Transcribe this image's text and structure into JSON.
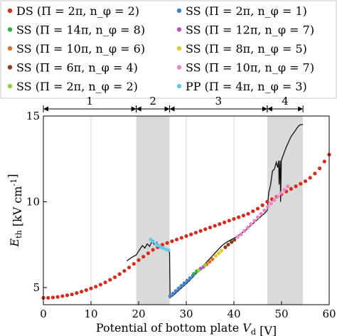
{
  "chart_data": {
    "type": "scatter",
    "xlabel": "Potential of bottom plate V_d [V]",
    "ylabel": "E_th [kV cm^-1]",
    "xlim": [
      0,
      60
    ],
    "ylim": [
      4,
      15
    ],
    "x_ticks": [
      0,
      10,
      20,
      30,
      40,
      50,
      60
    ],
    "y_ticks": [
      5,
      10,
      15
    ],
    "grid": "vertical",
    "legend_position": "top",
    "regions": [
      {
        "label": "1",
        "x": [
          0,
          19.5
        ],
        "shaded": false
      },
      {
        "label": "2",
        "x": [
          19.5,
          26.5
        ],
        "shaded": true
      },
      {
        "label": "3",
        "x": [
          26.5,
          47
        ],
        "shaded": false
      },
      {
        "label": "4",
        "x": [
          47,
          54.5
        ],
        "shaded": true
      }
    ],
    "series": [
      {
        "name": "DS (Π = 2π, n_φ = 2)",
        "color": "#d62b1f",
        "x": [
          0,
          1,
          2,
          3,
          4,
          5,
          6,
          7,
          8,
          9,
          10,
          11,
          12,
          13,
          14,
          15,
          16,
          17,
          18,
          19,
          20,
          21,
          22,
          23,
          24,
          25,
          26,
          27,
          28,
          29,
          30,
          31,
          32,
          33,
          34,
          35,
          36,
          37,
          38,
          39,
          40,
          41,
          42,
          43,
          44,
          45,
          46,
          47,
          48,
          49,
          50,
          51,
          52,
          53,
          54,
          55,
          56,
          57,
          58,
          59,
          60
        ],
        "y": [
          4.4,
          4.4,
          4.42,
          4.45,
          4.5,
          4.55,
          4.6,
          4.68,
          4.76,
          4.85,
          4.95,
          5.05,
          5.17,
          5.3,
          5.45,
          5.6,
          5.78,
          5.97,
          6.17,
          6.38,
          6.6,
          6.8,
          7.0,
          7.2,
          7.35,
          7.5,
          7.6,
          7.7,
          7.8,
          7.9,
          8.0,
          8.1,
          8.2,
          8.3,
          8.4,
          8.5,
          8.6,
          8.7,
          8.8,
          8.9,
          9.0,
          9.1,
          9.2,
          9.3,
          9.45,
          9.6,
          9.8,
          10.0,
          10.15,
          10.3,
          10.45,
          10.6,
          10.75,
          10.9,
          11.05,
          11.2,
          11.4,
          11.65,
          11.95,
          12.35,
          12.75
        ]
      },
      {
        "name": "SS (Π = 2π, n_φ = 1)",
        "color": "#3f80cc",
        "x": [
          26.6,
          27.2,
          27.8,
          28.4,
          29.0,
          29.6,
          30.2,
          30.8,
          31.4
        ],
        "y": [
          4.5,
          4.65,
          4.8,
          4.95,
          5.1,
          5.25,
          5.4,
          5.55,
          5.7
        ]
      },
      {
        "name": "SS (Π = 14π, n_φ = 8)",
        "color": "#2ea84a",
        "x": [
          31.6,
          32.2
        ],
        "y": [
          5.8,
          5.95
        ]
      },
      {
        "name": "SS (Π = 12π, n_φ = 7)",
        "color": "#b84fc4",
        "x": [
          33.0,
          33.6
        ],
        "y": [
          6.1,
          6.2
        ]
      },
      {
        "name": "SS (Π = 10π, n_φ = 6)",
        "color": "#e0702a",
        "x": [
          34.3,
          34.9,
          35.5
        ],
        "y": [
          6.35,
          6.5,
          6.65
        ]
      },
      {
        "name": "SS (Π = 8π, n_φ = 5)",
        "color": "#e3cc1a",
        "x": [
          36.2,
          36.8,
          37.4
        ],
        "y": [
          6.85,
          7.0,
          7.15
        ]
      },
      {
        "name": "SS (Π = 6π, n_φ = 4)",
        "color": "#8c3b1e",
        "x": [
          38.2,
          38.8,
          39.5,
          40.1
        ],
        "y": [
          7.35,
          7.5,
          7.65,
          7.78
        ]
      },
      {
        "name": "SS (Π = 10π, n_φ = 7)",
        "color": "#ee83c8",
        "x": [
          40.8,
          41.5,
          42.2,
          42.9,
          43.6,
          44.3,
          45.0,
          45.7,
          46.4,
          47.1,
          47.8,
          48.5,
          49.2,
          49.9,
          50.6,
          51.3
        ],
        "y": [
          7.95,
          8.1,
          8.3,
          8.5,
          8.7,
          8.9,
          9.1,
          9.3,
          9.5,
          9.7,
          9.9,
          10.1,
          10.3,
          10.5,
          10.7,
          10.9
        ]
      },
      {
        "name": "SS (Π = 2π, n_φ = 2)",
        "color": "#8fd13a",
        "x": [
          32.6,
          33.9
        ],
        "y": [
          6.0,
          6.3
        ]
      },
      {
        "name": "PP (Π = 4π, n_φ = 3)",
        "color": "#66c8ee",
        "x": [
          22.5,
          23.0,
          23.6,
          24.1,
          24.7,
          25.2,
          25.8,
          26.3
        ],
        "y": [
          7.8,
          7.7,
          7.55,
          7.45,
          7.35,
          7.3,
          7.22,
          7.18
        ]
      }
    ],
    "threshold_line": {
      "x": [
        17.5,
        18.5,
        19.5,
        20.2,
        20.8,
        21.3,
        21.8,
        22.3,
        22.8,
        23.3,
        23.8,
        24.3,
        24.8,
        25.3,
        25.8,
        26.3,
        26.5,
        26.6,
        27.5,
        28.5,
        29.5,
        30.5,
        31.5,
        32.5,
        33.5,
        34.5,
        35.5,
        36.5,
        37.5,
        38.5,
        39.5,
        40.5,
        41.5,
        42.5,
        43.5,
        44.5,
        45.5,
        46.5,
        47.0,
        47.3,
        47.7,
        48.1,
        48.5,
        48.9,
        49.2,
        49.4,
        49.5,
        49.7,
        49.8,
        49.95,
        50.2,
        50.6,
        51.0,
        51.5,
        52.0,
        52.5,
        53.0,
        53.5,
        54.0,
        54.5
      ],
      "y": [
        6.55,
        6.75,
        6.9,
        7.2,
        7.45,
        7.3,
        7.55,
        7.4,
        7.7,
        7.5,
        7.65,
        7.35,
        7.45,
        7.3,
        7.25,
        7.1,
        7.05,
        4.4,
        4.6,
        4.85,
        5.1,
        5.35,
        5.65,
        5.95,
        6.25,
        6.55,
        6.85,
        7.15,
        7.45,
        7.65,
        7.8,
        7.95,
        8.15,
        8.35,
        8.6,
        8.85,
        9.1,
        9.35,
        9.5,
        10.5,
        11.0,
        11.8,
        11.9,
        12.3,
        12.0,
        12.4,
        11.0,
        12.4,
        10.0,
        12.4,
        12.6,
        12.9,
        13.2,
        13.5,
        13.8,
        14.0,
        14.2,
        14.4,
        14.5,
        14.5
      ]
    }
  }
}
